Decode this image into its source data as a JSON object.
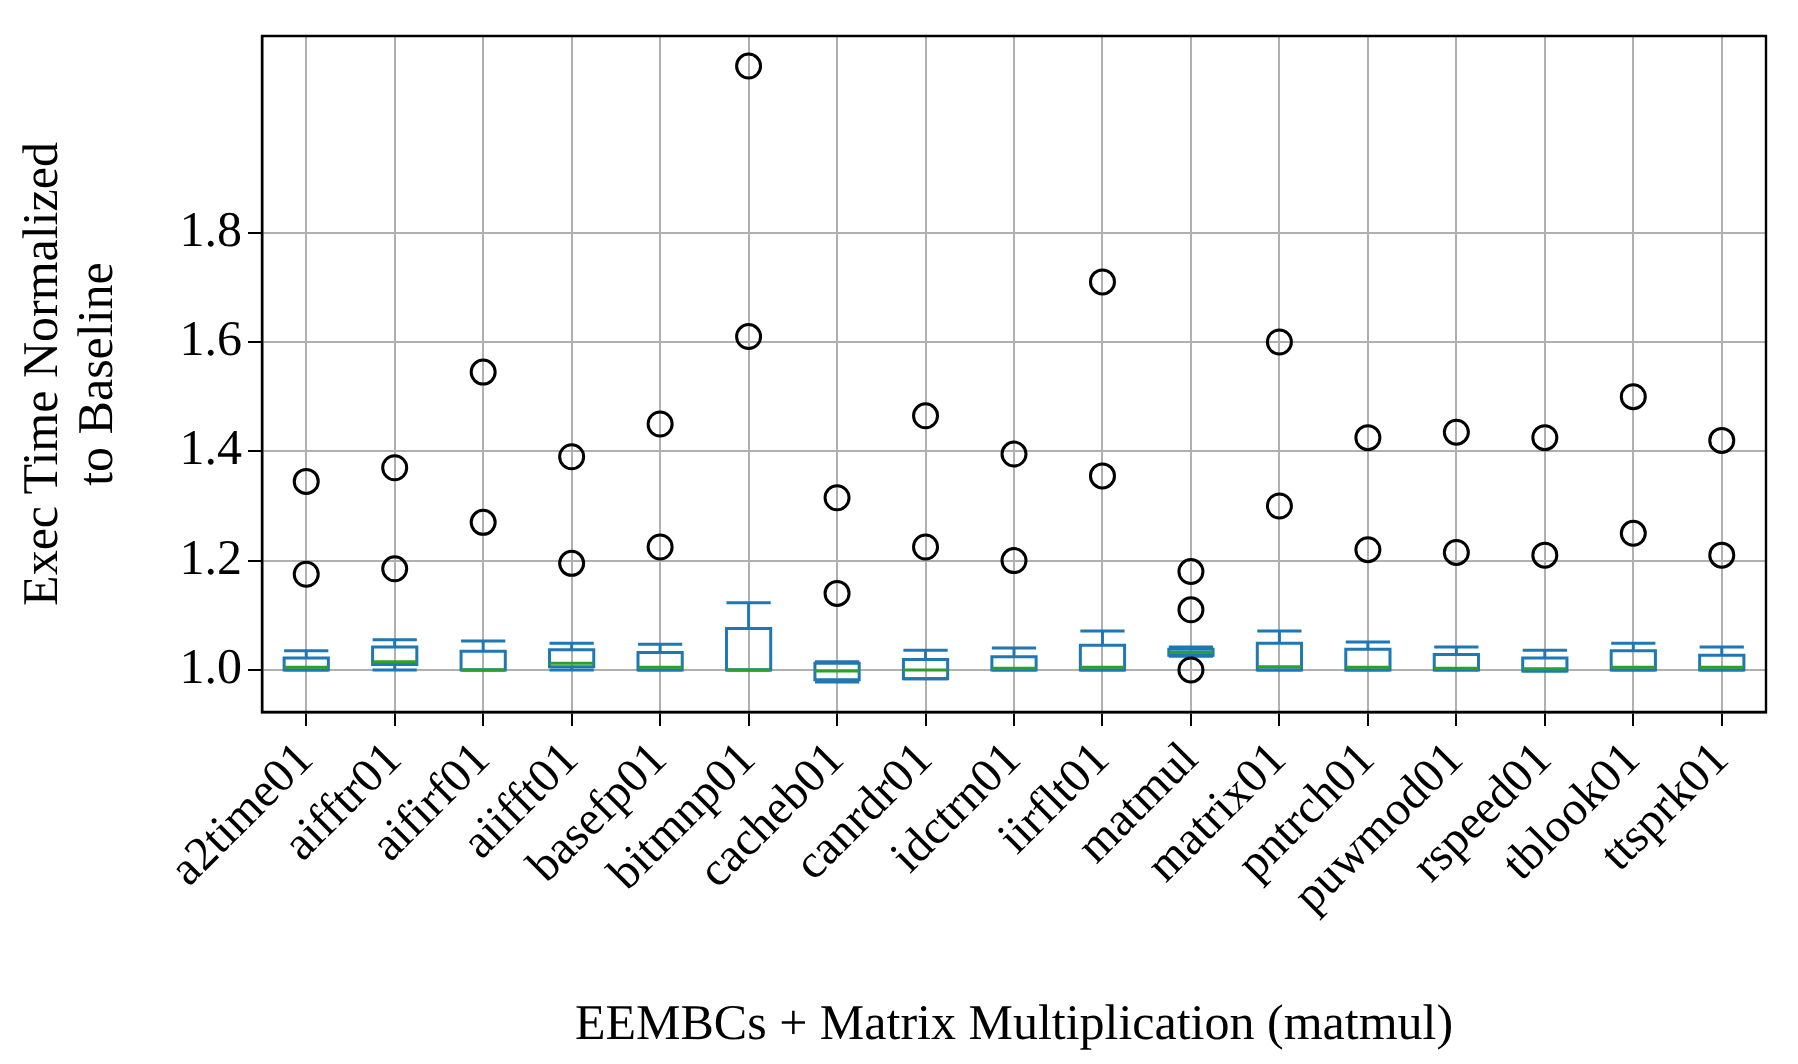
{
  "chart_data": {
    "type": "box",
    "xlabel": "EEMBCs + Matrix Multiplication (matmul)",
    "ylabel": "Exec Time Normalized\nto Baseline",
    "categories": [
      "a2time01",
      "aifftr01",
      "aifirf01",
      "aiifft01",
      "basefp01",
      "bitmnp01",
      "cacheb01",
      "canrdr01",
      "idctrn01",
      "iirflt01",
      "matmul",
      "matrix01",
      "pntrch01",
      "puwmod01",
      "rspeed01",
      "tblook01",
      "ttsprk01"
    ],
    "color": "#1f77b4",
    "boxes": [
      {
        "low": 1.0,
        "q1": 1.0,
        "median": 1.005,
        "q3": 1.022,
        "high": 1.035,
        "outliers": [
          1.175,
          1.345
        ]
      },
      {
        "low": 1.0,
        "q1": 1.01,
        "median": 1.015,
        "q3": 1.042,
        "high": 1.055,
        "outliers": [
          1.185,
          1.37
        ]
      },
      {
        "low": 1.0,
        "q1": 1.0,
        "median": 1.0,
        "q3": 1.034,
        "high": 1.053,
        "outliers": [
          1.27,
          1.545
        ]
      },
      {
        "low": 1.0,
        "q1": 1.006,
        "median": 1.012,
        "q3": 1.037,
        "high": 1.049,
        "outliers": [
          1.195,
          1.39
        ]
      },
      {
        "low": 1.0,
        "q1": 1.0,
        "median": 1.005,
        "q3": 1.032,
        "high": 1.047,
        "outliers": [
          1.225,
          1.45
        ]
      },
      {
        "low": 1.0,
        "q1": 1.0,
        "median": 1.0,
        "q3": 1.076,
        "high": 1.123,
        "outliers": [
          1.61,
          2.105
        ]
      },
      {
        "low": 0.978,
        "q1": 0.982,
        "median": 0.998,
        "q3": 1.012,
        "high": 1.015,
        "outliers": [
          1.14,
          1.315
        ]
      },
      {
        "low": 0.984,
        "q1": 0.984,
        "median": 1.0,
        "q3": 1.019,
        "high": 1.036,
        "outliers": [
          1.225,
          1.465
        ]
      },
      {
        "low": 1.0,
        "q1": 1.0,
        "median": 1.003,
        "q3": 1.024,
        "high": 1.04,
        "outliers": [
          1.2,
          1.395
        ]
      },
      {
        "low": 1.0,
        "q1": 1.0,
        "median": 1.005,
        "q3": 1.045,
        "high": 1.071,
        "outliers": [
          1.355,
          1.71
        ]
      },
      {
        "low": 1.025,
        "q1": 1.027,
        "median": 1.032,
        "q3": 1.038,
        "high": 1.042,
        "outliers": [
          1.0,
          1.11,
          1.18
        ]
      },
      {
        "low": 1.0,
        "q1": 1.0,
        "median": 1.006,
        "q3": 1.049,
        "high": 1.071,
        "outliers": [
          1.3,
          1.6
        ]
      },
      {
        "low": 1.0,
        "q1": 1.0,
        "median": 1.005,
        "q3": 1.038,
        "high": 1.051,
        "outliers": [
          1.22,
          1.425
        ]
      },
      {
        "low": 1.0,
        "q1": 1.0,
        "median": 1.003,
        "q3": 1.028,
        "high": 1.042,
        "outliers": [
          1.215,
          1.435
        ]
      },
      {
        "low": 0.998,
        "q1": 0.998,
        "median": 1.002,
        "q3": 1.022,
        "high": 1.036,
        "outliers": [
          1.21,
          1.425
        ]
      },
      {
        "low": 1.0,
        "q1": 1.0,
        "median": 1.005,
        "q3": 1.035,
        "high": 1.049,
        "outliers": [
          1.25,
          1.5
        ]
      },
      {
        "low": 1.0,
        "q1": 1.0,
        "median": 1.005,
        "q3": 1.027,
        "high": 1.042,
        "outliers": [
          1.21,
          1.42
        ]
      }
    ],
    "ylim": [
      0.923,
      2.16
    ],
    "yticks": [
      {
        "value": 1.0,
        "label": "1.0"
      },
      {
        "value": 1.2,
        "label": "1.2"
      },
      {
        "value": 1.4,
        "label": "1.4"
      },
      {
        "value": 1.6,
        "label": "1.6"
      },
      {
        "value": 1.8,
        "label": "1.8"
      }
    ],
    "grid": true,
    "marker": "circle"
  }
}
